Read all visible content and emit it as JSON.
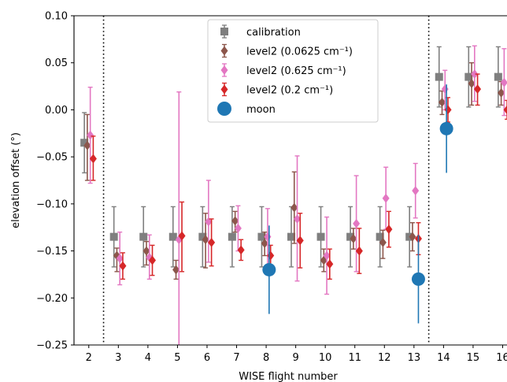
{
  "chart_data": {
    "type": "scatter",
    "title": "",
    "xlabel": "WISE flight number",
    "ylabel": "elevation offset (°)",
    "xlim": [
      1.5,
      16.2
    ],
    "ylim": [
      -0.25,
      0.1
    ],
    "xticks": [
      2,
      3,
      4,
      5,
      6,
      7,
      8,
      9,
      10,
      11,
      12,
      13,
      14,
      15,
      16
    ],
    "xtick_labels": [
      "2",
      "3",
      "4",
      "5",
      "6",
      "7",
      "8",
      "9",
      "10",
      "11",
      "12",
      "13",
      "14",
      "15",
      "16"
    ],
    "yticks": [
      -0.25,
      -0.2,
      -0.15,
      -0.1,
      -0.05,
      0.0,
      0.05,
      0.1
    ],
    "ytick_labels": [
      "−0.25",
      "−0.20",
      "−0.15",
      "−0.10",
      "−0.05",
      "0.00",
      "0.05",
      "0.10"
    ],
    "vlines": [
      2.5,
      13.5
    ],
    "grid": false,
    "legend_position": "top-center",
    "series": [
      {
        "name": "calibration",
        "color": "#7f7f7f",
        "marker": "square",
        "x_offset": -0.15,
        "points": [
          {
            "x": 2,
            "y": -0.035,
            "lo": -0.067,
            "hi": -0.003
          },
          {
            "x": 3,
            "y": -0.135,
            "lo": -0.167,
            "hi": -0.103
          },
          {
            "x": 4,
            "y": -0.135,
            "lo": -0.167,
            "hi": -0.103
          },
          {
            "x": 5,
            "y": -0.135,
            "lo": -0.167,
            "hi": -0.103
          },
          {
            "x": 6,
            "y": -0.135,
            "lo": -0.167,
            "hi": -0.103
          },
          {
            "x": 7,
            "y": -0.135,
            "lo": -0.167,
            "hi": -0.103
          },
          {
            "x": 8,
            "y": -0.135,
            "lo": -0.167,
            "hi": -0.103
          },
          {
            "x": 9,
            "y": -0.135,
            "lo": -0.167,
            "hi": -0.103
          },
          {
            "x": 10,
            "y": -0.135,
            "lo": -0.167,
            "hi": -0.103
          },
          {
            "x": 11,
            "y": -0.135,
            "lo": -0.167,
            "hi": -0.103
          },
          {
            "x": 12,
            "y": -0.135,
            "lo": -0.167,
            "hi": -0.103
          },
          {
            "x": 13,
            "y": -0.135,
            "lo": -0.167,
            "hi": -0.103
          },
          {
            "x": 14,
            "y": 0.035,
            "lo": 0.003,
            "hi": 0.067
          },
          {
            "x": 15,
            "y": 0.035,
            "lo": 0.003,
            "hi": 0.067
          },
          {
            "x": 16,
            "y": 0.035,
            "lo": 0.003,
            "hi": 0.067
          }
        ]
      },
      {
        "name": "level2 (0.0625 cm⁻¹)",
        "color": "#8c564b",
        "marker": "diamond",
        "x_offset": -0.05,
        "points": [
          {
            "x": 2,
            "y": -0.038,
            "lo": -0.075,
            "hi": -0.005
          },
          {
            "x": 3,
            "y": -0.155,
            "lo": -0.172,
            "hi": -0.147
          },
          {
            "x": 4,
            "y": -0.15,
            "lo": -0.165,
            "hi": -0.14
          },
          {
            "x": 5,
            "y": -0.17,
            "lo": -0.18,
            "hi": -0.16
          },
          {
            "x": 6,
            "y": -0.138,
            "lo": -0.168,
            "hi": -0.11
          },
          {
            "x": 7,
            "y": -0.118,
            "lo": -0.13,
            "hi": -0.108
          },
          {
            "x": 8,
            "y": -0.142,
            "lo": -0.155,
            "hi": -0.13
          },
          {
            "x": 9,
            "y": -0.104,
            "lo": -0.142,
            "hi": -0.066
          },
          {
            "x": 10,
            "y": -0.16,
            "lo": -0.172,
            "hi": -0.148
          },
          {
            "x": 11,
            "y": -0.137,
            "lo": -0.148,
            "hi": -0.126
          },
          {
            "x": 12,
            "y": -0.141,
            "lo": -0.158,
            "hi": -0.128
          },
          {
            "x": 13,
            "y": -0.135,
            "lo": -0.15,
            "hi": -0.12
          },
          {
            "x": 14,
            "y": 0.008,
            "lo": -0.005,
            "hi": 0.02
          },
          {
            "x": 15,
            "y": 0.028,
            "lo": 0.005,
            "hi": 0.05
          },
          {
            "x": 16,
            "y": 0.018,
            "lo": 0.005,
            "hi": 0.03
          }
        ]
      },
      {
        "name": "level2 (0.625 cm⁻¹)",
        "color": "#e377c2",
        "marker": "diamond",
        "x_offset": 0.05,
        "points": [
          {
            "x": 2,
            "y": -0.027,
            "lo": -0.078,
            "hi": 0.024
          },
          {
            "x": 3,
            "y": -0.158,
            "lo": -0.186,
            "hi": -0.13
          },
          {
            "x": 4,
            "y": -0.157,
            "lo": -0.18,
            "hi": -0.133
          },
          {
            "x": 5,
            "y": -0.138,
            "lo": -0.295,
            "hi": 0.019
          },
          {
            "x": 6,
            "y": -0.119,
            "lo": -0.162,
            "hi": -0.075
          },
          {
            "x": 7,
            "y": -0.126,
            "lo": -0.15,
            "hi": -0.102
          },
          {
            "x": 8,
            "y": -0.135,
            "lo": -0.165,
            "hi": -0.105
          },
          {
            "x": 9,
            "y": -0.116,
            "lo": -0.182,
            "hi": -0.049
          },
          {
            "x": 10,
            "y": -0.155,
            "lo": -0.196,
            "hi": -0.114
          },
          {
            "x": 11,
            "y": -0.121,
            "lo": -0.172,
            "hi": -0.07
          },
          {
            "x": 12,
            "y": -0.094,
            "lo": -0.127,
            "hi": -0.061
          },
          {
            "x": 13,
            "y": -0.086,
            "lo": -0.115,
            "hi": -0.057
          },
          {
            "x": 14,
            "y": 0.022,
            "lo": 0.0,
            "hi": 0.042
          },
          {
            "x": 15,
            "y": 0.038,
            "lo": 0.009,
            "hi": 0.068
          },
          {
            "x": 16,
            "y": 0.029,
            "lo": -0.006,
            "hi": 0.065
          }
        ]
      },
      {
        "name": "level2 (0.2 cm⁻¹)",
        "color": "#d62728",
        "marker": "diamond",
        "x_offset": 0.15,
        "points": [
          {
            "x": 2,
            "y": -0.052,
            "lo": -0.075,
            "hi": -0.028
          },
          {
            "x": 3,
            "y": -0.166,
            "lo": -0.18,
            "hi": -0.152
          },
          {
            "x": 4,
            "y": -0.16,
            "lo": -0.176,
            "hi": -0.144
          },
          {
            "x": 5,
            "y": -0.134,
            "lo": -0.172,
            "hi": -0.098
          },
          {
            "x": 6,
            "y": -0.141,
            "lo": -0.166,
            "hi": -0.116
          },
          {
            "x": 7,
            "y": -0.149,
            "lo": -0.16,
            "hi": -0.138
          },
          {
            "x": 8,
            "y": -0.155,
            "lo": -0.166,
            "hi": -0.144
          },
          {
            "x": 9,
            "y": -0.139,
            "lo": -0.168,
            "hi": -0.11
          },
          {
            "x": 10,
            "y": -0.164,
            "lo": -0.18,
            "hi": -0.148
          },
          {
            "x": 11,
            "y": -0.15,
            "lo": -0.174,
            "hi": -0.126
          },
          {
            "x": 12,
            "y": -0.127,
            "lo": -0.146,
            "hi": -0.108
          },
          {
            "x": 13,
            "y": -0.137,
            "lo": -0.154,
            "hi": -0.12
          },
          {
            "x": 14,
            "y": 0.0,
            "lo": -0.013,
            "hi": 0.013
          },
          {
            "x": 15,
            "y": 0.022,
            "lo": 0.005,
            "hi": 0.038
          },
          {
            "x": 16,
            "y": 0.0,
            "lo": -0.01,
            "hi": 0.01
          }
        ]
      },
      {
        "name": "moon",
        "color": "#1f77b4",
        "marker": "circle",
        "x_offset": 0.0,
        "points": [
          {
            "x": 8.1,
            "y": -0.17,
            "lo": -0.217,
            "hi": -0.123
          },
          {
            "x": 13.15,
            "y": -0.18,
            "lo": -0.227,
            "hi": -0.133
          },
          {
            "x": 14.1,
            "y": -0.02,
            "lo": -0.067,
            "hi": 0.027
          }
        ]
      }
    ]
  }
}
